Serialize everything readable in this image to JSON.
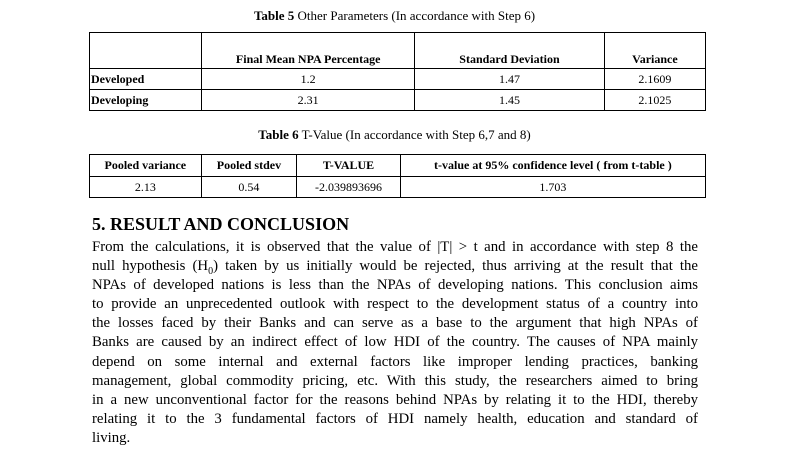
{
  "table5": {
    "caption_label": "Table 5",
    "caption_text": " Other Parameters (In accordance with Step 6)",
    "headers": [
      "",
      "Final Mean NPA Percentage",
      "Standard Deviation",
      "Variance"
    ],
    "rows": [
      {
        "label": "Developed",
        "cells": [
          "1.2",
          "1.47",
          "2.1609"
        ]
      },
      {
        "label": "Developing",
        "cells": [
          "2.31",
          "1.45",
          "2.1025"
        ]
      }
    ]
  },
  "table6": {
    "caption_label": "Table 6",
    "caption_text": " T-Value (In accordance with Step 6,7 and 8)",
    "headers": [
      "Pooled variance",
      "Pooled stdev",
      "T-VALUE",
      "t-value at 95% confidence level ( from t-table )"
    ],
    "rows": [
      [
        "2.13",
        "0.54",
        "-2.039893696",
        "1.703"
      ]
    ]
  },
  "section": {
    "title": "5. RESULT AND CONCLUSION",
    "lines": [
      "From the calculations, it is observed that the value of |T| > t and in accordance with step 8 the",
      [
        "null hypothesis (H",
        "0",
        ") taken by us initially would be rejected, thus arriving at the result that the"
      ],
      "NPAs of developed nations is less than the NPAs of developing nations. This conclusion aims",
      "to provide an unprecedented outlook with respect to the development status of a country into",
      "the losses faced by their Banks and can serve as a base to the argument that high NPAs of",
      "Banks are caused by an indirect effect of low HDI of the country. The causes of NPA mainly",
      "depend on some internal and external factors like improper lending practices, banking",
      "management, global commodity pricing, etc. With this study, the researchers aimed to bring",
      "in a new unconventional factor for the reasons behind NPAs by relating it to the HDI, thereby",
      "relating it to the 3 fundamental factors of HDI namely health, education and standard of",
      "living."
    ]
  }
}
